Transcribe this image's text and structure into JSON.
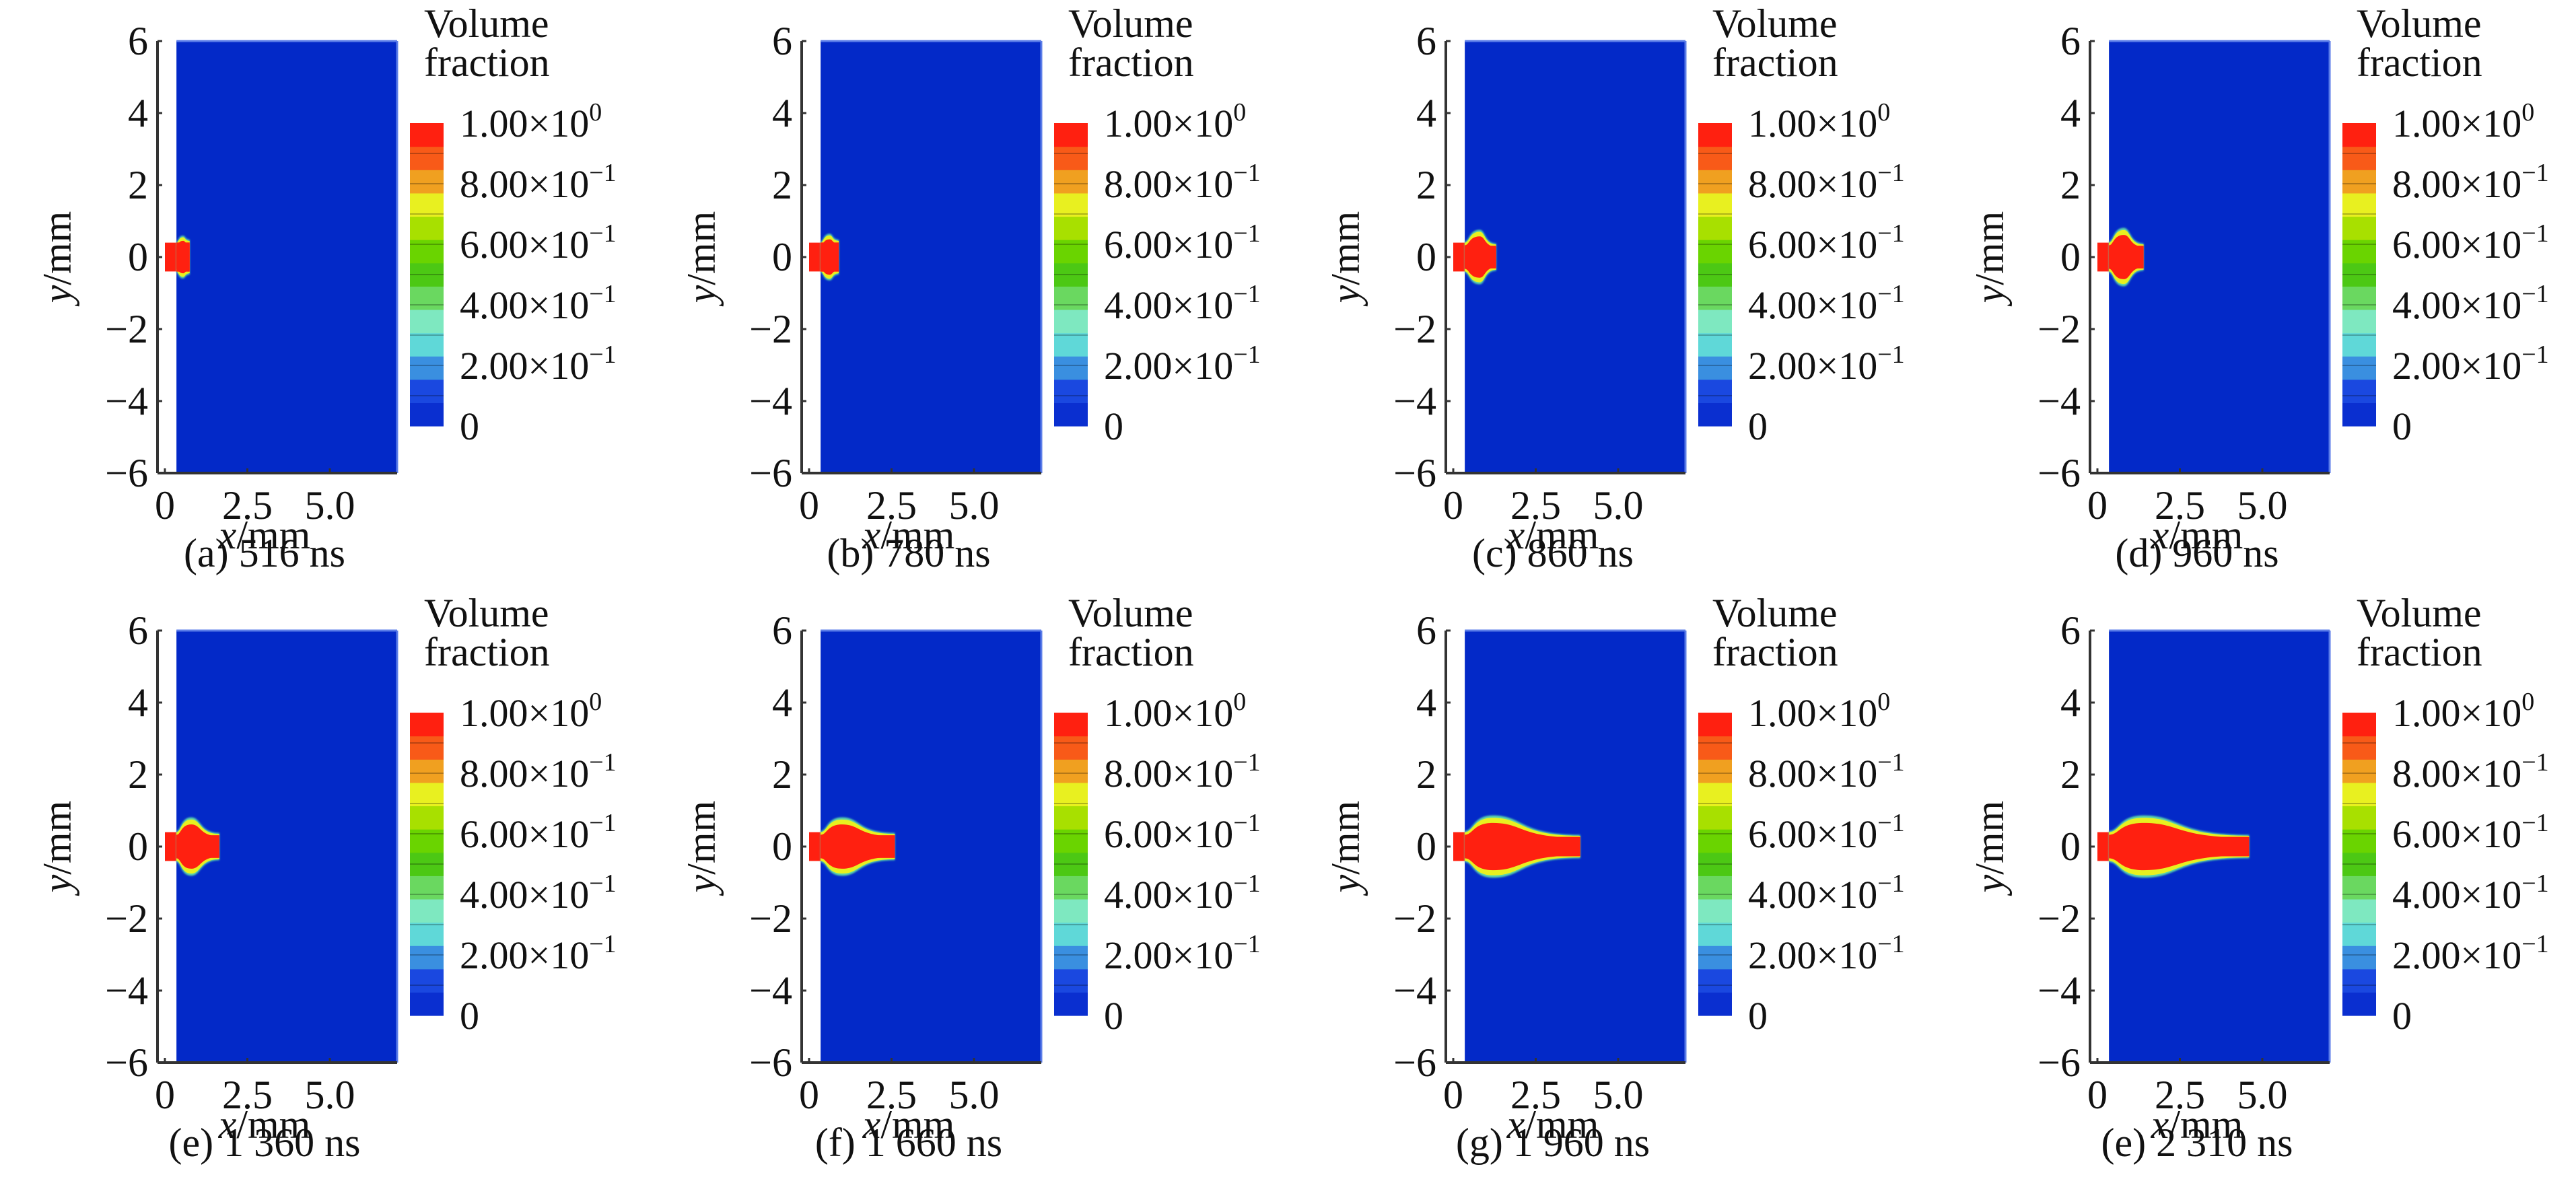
{
  "figure": {
    "colorbar": {
      "title_line1": "Volume",
      "title_line2": "fraction",
      "labels": [
        {
          "mantissa": "1.00×10",
          "exp": "0",
          "value": 1.0
        },
        {
          "mantissa": "8.00×10",
          "exp": "−1",
          "value": 0.8
        },
        {
          "mantissa": "6.00×10",
          "exp": "−1",
          "value": 0.6
        },
        {
          "mantissa": "4.00×10",
          "exp": "−1",
          "value": 0.4
        },
        {
          "mantissa": "2.00×10",
          "exp": "−1",
          "value": 0.2
        },
        {
          "mantissa": "0",
          "exp": "",
          "value": 0.0
        }
      ],
      "colors": [
        "#0a2fd0",
        "#1a48e0",
        "#3a8fe0",
        "#5fd8d8",
        "#7ee8c0",
        "#6ad860",
        "#4cc814",
        "#6ad400",
        "#a8e000",
        "#e8f020",
        "#f0a020",
        "#f85a18",
        "#ff2010"
      ]
    },
    "field_colors": {
      "background": "#0329c8",
      "liquid": "#ff2010",
      "interface_inner": "#e8f020",
      "interface_outer": "#5fd8a8"
    }
  },
  "chart_data": [
    {
      "type": "heatmap",
      "panel": "a",
      "caption": "(a) 516 ns",
      "time_ns": 516,
      "xlabel_var": "x",
      "xlabel_unit": "/mm",
      "ylabel_var": "y",
      "ylabel_unit": "/mm",
      "xlim": [
        0,
        6.9
      ],
      "ylim": [
        -6,
        6
      ],
      "xticks": [
        "0",
        "2.5",
        "5.0"
      ],
      "xtick_values": [
        0,
        2.5,
        5.0
      ],
      "yticks": [
        "6",
        "4",
        "2",
        "0",
        "−2",
        "−4",
        "−6"
      ],
      "ytick_values": [
        6,
        4,
        2,
        0,
        -2,
        -4,
        -6
      ],
      "domain_xmin": 0.35,
      "nozzle_halfwidth": 0.4,
      "jet_tip_x": 0.75,
      "head_halfwidth": 0.55,
      "head_x": 0.8,
      "tail_halfwidth": 0.45
    },
    {
      "type": "heatmap",
      "panel": "b",
      "caption": "(b) 780 ns",
      "time_ns": 780,
      "xlabel_var": "x",
      "xlabel_unit": "/mm",
      "ylabel_var": "y",
      "ylabel_unit": "/mm",
      "xlim": [
        0,
        6.9
      ],
      "ylim": [
        -6,
        6
      ],
      "xticks": [
        "0",
        "2.5",
        "5.0"
      ],
      "xtick_values": [
        0,
        2.5,
        5.0
      ],
      "yticks": [
        "6",
        "4",
        "2",
        "0",
        "−2",
        "−4",
        "−6"
      ],
      "ytick_values": [
        6,
        4,
        2,
        0,
        -2,
        -4,
        -6
      ],
      "domain_xmin": 0.35,
      "nozzle_halfwidth": 0.4,
      "jet_tip_x": 0.9,
      "head_halfwidth": 0.6,
      "head_x": 0.75,
      "tail_halfwidth": 0.45
    },
    {
      "type": "heatmap",
      "panel": "c",
      "caption": "(c) 860 ns",
      "time_ns": 860,
      "xlabel_var": "x",
      "xlabel_unit": "/mm",
      "ylabel_var": "y",
      "ylabel_unit": "/mm",
      "xlim": [
        0,
        6.9
      ],
      "ylim": [
        -6,
        6
      ],
      "xticks": [
        "0",
        "2.5",
        "5.0"
      ],
      "xtick_values": [
        0,
        2.5,
        5.0
      ],
      "yticks": [
        "6",
        "4",
        "2",
        "0",
        "−2",
        "−4",
        "−6"
      ],
      "ytick_values": [
        6,
        4,
        2,
        0,
        -2,
        -4,
        -6
      ],
      "domain_xmin": 0.35,
      "nozzle_halfwidth": 0.4,
      "jet_tip_x": 1.3,
      "head_halfwidth": 0.7,
      "head_x": 0.8,
      "tail_halfwidth": 0.35
    },
    {
      "type": "heatmap",
      "panel": "d",
      "caption": "(d) 960 ns",
      "time_ns": 960,
      "xlabel_var": "x",
      "xlabel_unit": "/mm",
      "ylabel_var": "y",
      "ylabel_unit": "/mm",
      "xlim": [
        0,
        6.9
      ],
      "ylim": [
        -6,
        6
      ],
      "xticks": [
        "0",
        "2.5",
        "5.0"
      ],
      "xtick_values": [
        0,
        2.5,
        5.0
      ],
      "yticks": [
        "6",
        "4",
        "2",
        "0",
        "−2",
        "−4",
        "−6"
      ],
      "ytick_values": [
        6,
        4,
        2,
        0,
        -2,
        -4,
        -6
      ],
      "domain_xmin": 0.35,
      "nozzle_halfwidth": 0.4,
      "jet_tip_x": 1.4,
      "head_halfwidth": 0.75,
      "head_x": 0.8,
      "tail_halfwidth": 0.35
    },
    {
      "type": "heatmap",
      "panel": "e",
      "caption": "(e) 1 360 ns",
      "time_ns": 1360,
      "xlabel_var": "x",
      "xlabel_unit": "/mm",
      "ylabel_var": "y",
      "ylabel_unit": "/mm",
      "xlim": [
        0,
        6.9
      ],
      "ylim": [
        -6,
        6
      ],
      "xticks": [
        "0",
        "2.5",
        "5.0"
      ],
      "xtick_values": [
        0,
        2.5,
        5.0
      ],
      "yticks": [
        "6",
        "4",
        "2",
        "0",
        "−2",
        "−4",
        "−6"
      ],
      "ytick_values": [
        6,
        4,
        2,
        0,
        -2,
        -4,
        -6
      ],
      "domain_xmin": 0.35,
      "nozzle_halfwidth": 0.4,
      "jet_tip_x": 1.65,
      "head_halfwidth": 0.75,
      "head_x": 0.8,
      "tail_halfwidth": 0.35
    },
    {
      "type": "heatmap",
      "panel": "f",
      "caption": "(f) 1 660 ns",
      "time_ns": 1660,
      "xlabel_var": "x",
      "xlabel_unit": "/mm",
      "ylabel_var": "y",
      "ylabel_unit": "/mm",
      "xlim": [
        0,
        6.9
      ],
      "ylim": [
        -6,
        6
      ],
      "xticks": [
        "0",
        "2.5",
        "5.0"
      ],
      "xtick_values": [
        0,
        2.5,
        5.0
      ],
      "yticks": [
        "6",
        "4",
        "2",
        "0",
        "−2",
        "−4",
        "−6"
      ],
      "ytick_values": [
        6,
        4,
        2,
        0,
        -2,
        -4,
        -6
      ],
      "domain_xmin": 0.35,
      "nozzle_halfwidth": 0.4,
      "jet_tip_x": 2.6,
      "head_halfwidth": 0.75,
      "head_x": 1.0,
      "tail_halfwidth": 0.35
    },
    {
      "type": "heatmap",
      "panel": "g",
      "caption": "(g) 1 960 ns",
      "time_ns": 1960,
      "xlabel_var": "x",
      "xlabel_unit": "/mm",
      "ylabel_var": "y",
      "ylabel_unit": "/mm",
      "xlim": [
        0,
        6.9
      ],
      "ylim": [
        -6,
        6
      ],
      "xticks": [
        "0",
        "2.5",
        "5.0"
      ],
      "xtick_values": [
        0,
        2.5,
        5.0
      ],
      "yticks": [
        "6",
        "4",
        "2",
        "0",
        "−2",
        "−4",
        "−6"
      ],
      "ytick_values": [
        6,
        4,
        2,
        0,
        -2,
        -4,
        -6
      ],
      "domain_xmin": 0.35,
      "nozzle_halfwidth": 0.4,
      "jet_tip_x": 3.85,
      "head_halfwidth": 0.8,
      "head_x": 1.2,
      "tail_halfwidth": 0.3
    },
    {
      "type": "heatmap",
      "panel": "e",
      "caption": "(e) 2 310 ns",
      "time_ns": 2310,
      "xlabel_var": "x",
      "xlabel_unit": "/mm",
      "ylabel_var": "y",
      "ylabel_unit": "/mm",
      "xlim": [
        0,
        6.9
      ],
      "ylim": [
        -6,
        6
      ],
      "xticks": [
        "0",
        "2.5",
        "5.0"
      ],
      "xtick_values": [
        0,
        2.5,
        5.0
      ],
      "yticks": [
        "6",
        "4",
        "2",
        "0",
        "−2",
        "−4",
        "−6"
      ],
      "ytick_values": [
        6,
        4,
        2,
        0,
        -2,
        -4,
        -6
      ],
      "domain_xmin": 0.35,
      "nozzle_halfwidth": 0.4,
      "jet_tip_x": 4.6,
      "head_halfwidth": 0.8,
      "head_x": 1.4,
      "tail_halfwidth": 0.3
    }
  ]
}
